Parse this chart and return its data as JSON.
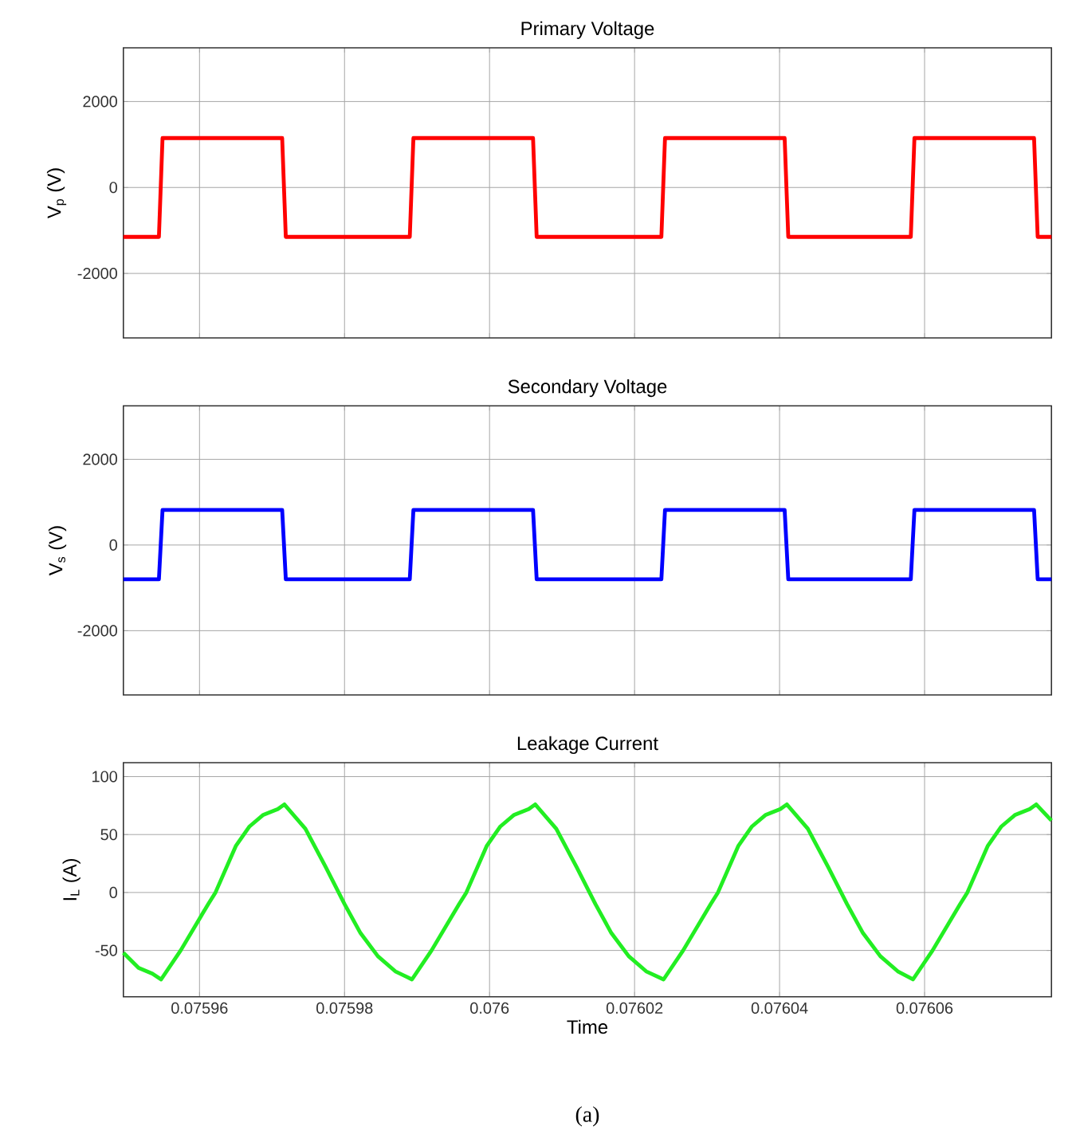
{
  "chart_data": [
    {
      "type": "line",
      "title": "Primary Voltage",
      "ylabel": "V$_{p}$ (V)",
      "grid": true,
      "tick_labels": "y",
      "xlim": [
        0.0759495,
        0.0760775
      ],
      "xticks": [
        0.07596,
        0.07598,
        0.076,
        0.07602,
        0.07604,
        0.07606
      ],
      "ylim": [
        -3500,
        3250
      ],
      "yticks": [
        -2000,
        0,
        2000
      ],
      "series": [
        {
          "color": "#ff0000",
          "x": [
            0.0759495,
            0.0759544,
            0.0759549,
            0.0759714,
            0.0759719,
            0.075989,
            0.0759895,
            0.076006,
            0.0760065,
            0.0760237,
            0.0760242,
            0.0760407,
            0.0760412,
            0.0760581,
            0.0760586,
            0.0760751,
            0.0760756,
            0.0760775
          ],
          "values": [
            -1150,
            -1150,
            1150,
            1150,
            -1150,
            -1150,
            1150,
            1150,
            -1150,
            -1150,
            1150,
            1150,
            -1150,
            -1150,
            1150,
            1150,
            -1150,
            -1150
          ]
        }
      ]
    },
    {
      "type": "line",
      "title": "Secondary Voltage",
      "ylabel": "V$_{s}$ (V)",
      "grid": true,
      "tick_labels": "y",
      "xlim": [
        0.0759495,
        0.0760775
      ],
      "xticks": [
        0.07596,
        0.07598,
        0.076,
        0.07602,
        0.07604,
        0.07606
      ],
      "ylim": [
        -3500,
        3250
      ],
      "yticks": [
        -2000,
        0,
        2000
      ],
      "series": [
        {
          "color": "#0000ff",
          "x": [
            0.0759495,
            0.0759544,
            0.0759549,
            0.0759714,
            0.0759719,
            0.075989,
            0.0759895,
            0.076006,
            0.0760065,
            0.0760237,
            0.0760242,
            0.0760407,
            0.0760412,
            0.0760581,
            0.0760586,
            0.0760751,
            0.0760756,
            0.0760775
          ],
          "values": [
            -800,
            -800,
            820,
            820,
            -800,
            -800,
            820,
            820,
            -800,
            -800,
            820,
            820,
            -800,
            -800,
            820,
            820,
            -800,
            -800
          ]
        }
      ]
    },
    {
      "type": "line",
      "title": "Leakage Current",
      "xlabel": "Time",
      "ylabel": "I$_{L}$ (A)",
      "grid": true,
      "xlim": [
        0.0759495,
        0.0760775
      ],
      "xticks": [
        0.07596,
        0.07598,
        0.076,
        0.07602,
        0.07604,
        0.07606
      ],
      "ylim": [
        -90,
        112
      ],
      "yticks": [
        -50,
        0,
        50,
        100
      ],
      "annotations": [
        "(a)"
      ],
      "series": [
        {
          "color": "#22ee22",
          "x": [
            0.0759495,
            0.0759516,
            0.0759535,
            0.0759547,
            0.0759574,
            0.0759612,
            0.0759622,
            0.075965,
            0.0759669,
            0.0759688,
            0.0759708,
            0.0759717,
            0.0759746,
            0.0759774,
            0.07598,
            0.0759822,
            0.0759846,
            0.075987,
            0.0759893,
            0.075992,
            0.0759958,
            0.0759968,
            0.0759996,
            0.0760015,
            0.0760034,
            0.0760054,
            0.0760063,
            0.0760092,
            0.076012,
            0.0760146,
            0.0760168,
            0.0760192,
            0.0760216,
            0.076024,
            0.0760267,
            0.0760305,
            0.0760315,
            0.0760343,
            0.0760362,
            0.0760381,
            0.0760401,
            0.076041,
            0.0760439,
            0.0760467,
            0.0760493,
            0.0760515,
            0.0760539,
            0.0760563,
            0.0760584,
            0.0760611,
            0.0760649,
            0.0760659,
            0.0760687,
            0.0760706,
            0.0760725,
            0.0760745,
            0.0760754,
            0.0760775
          ],
          "values": [
            -52,
            -65,
            -70,
            -75,
            -50,
            -10,
            0,
            40,
            57,
            67,
            72,
            76,
            55,
            22,
            -10,
            -35,
            -55,
            -68,
            -75,
            -50,
            -10,
            0,
            40,
            57,
            67,
            72,
            76,
            55,
            22,
            -10,
            -35,
            -55,
            -68,
            -75,
            -50,
            -10,
            0,
            40,
            57,
            67,
            72,
            76,
            55,
            22,
            -10,
            -35,
            -55,
            -68,
            -75,
            -50,
            -10,
            0,
            40,
            57,
            67,
            72,
            76,
            62
          ]
        }
      ]
    }
  ]
}
